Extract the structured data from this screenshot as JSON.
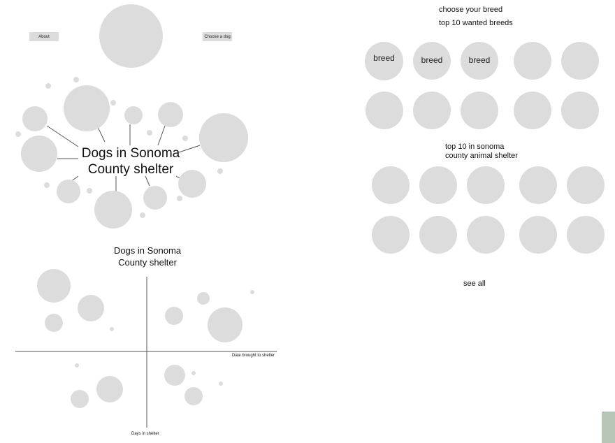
{
  "nav": {
    "about_label": "About",
    "choose_label": "Choose a dog"
  },
  "web": {
    "title_line1": "Dogs in Sonoma",
    "title_line2": "County shelter"
  },
  "scatter": {
    "title_line1": "Dogs in Sonoma",
    "title_line2": "County shelter",
    "x_axis_label": "Date brought to shelter",
    "y_axis_label": "Days in shelter"
  },
  "breeds": {
    "heading": "choose your breed",
    "wanted_heading": "top 10 wanted breeds",
    "item_label": "breed",
    "shelter_heading_line1": "top 10 in sonoma",
    "shelter_heading_line2": "county animal shelter",
    "see_all_label": "see all"
  },
  "colors": {
    "placeholder": "#dcdcdc",
    "line": "#555555",
    "accent_swatch": "#b8c6b8"
  }
}
